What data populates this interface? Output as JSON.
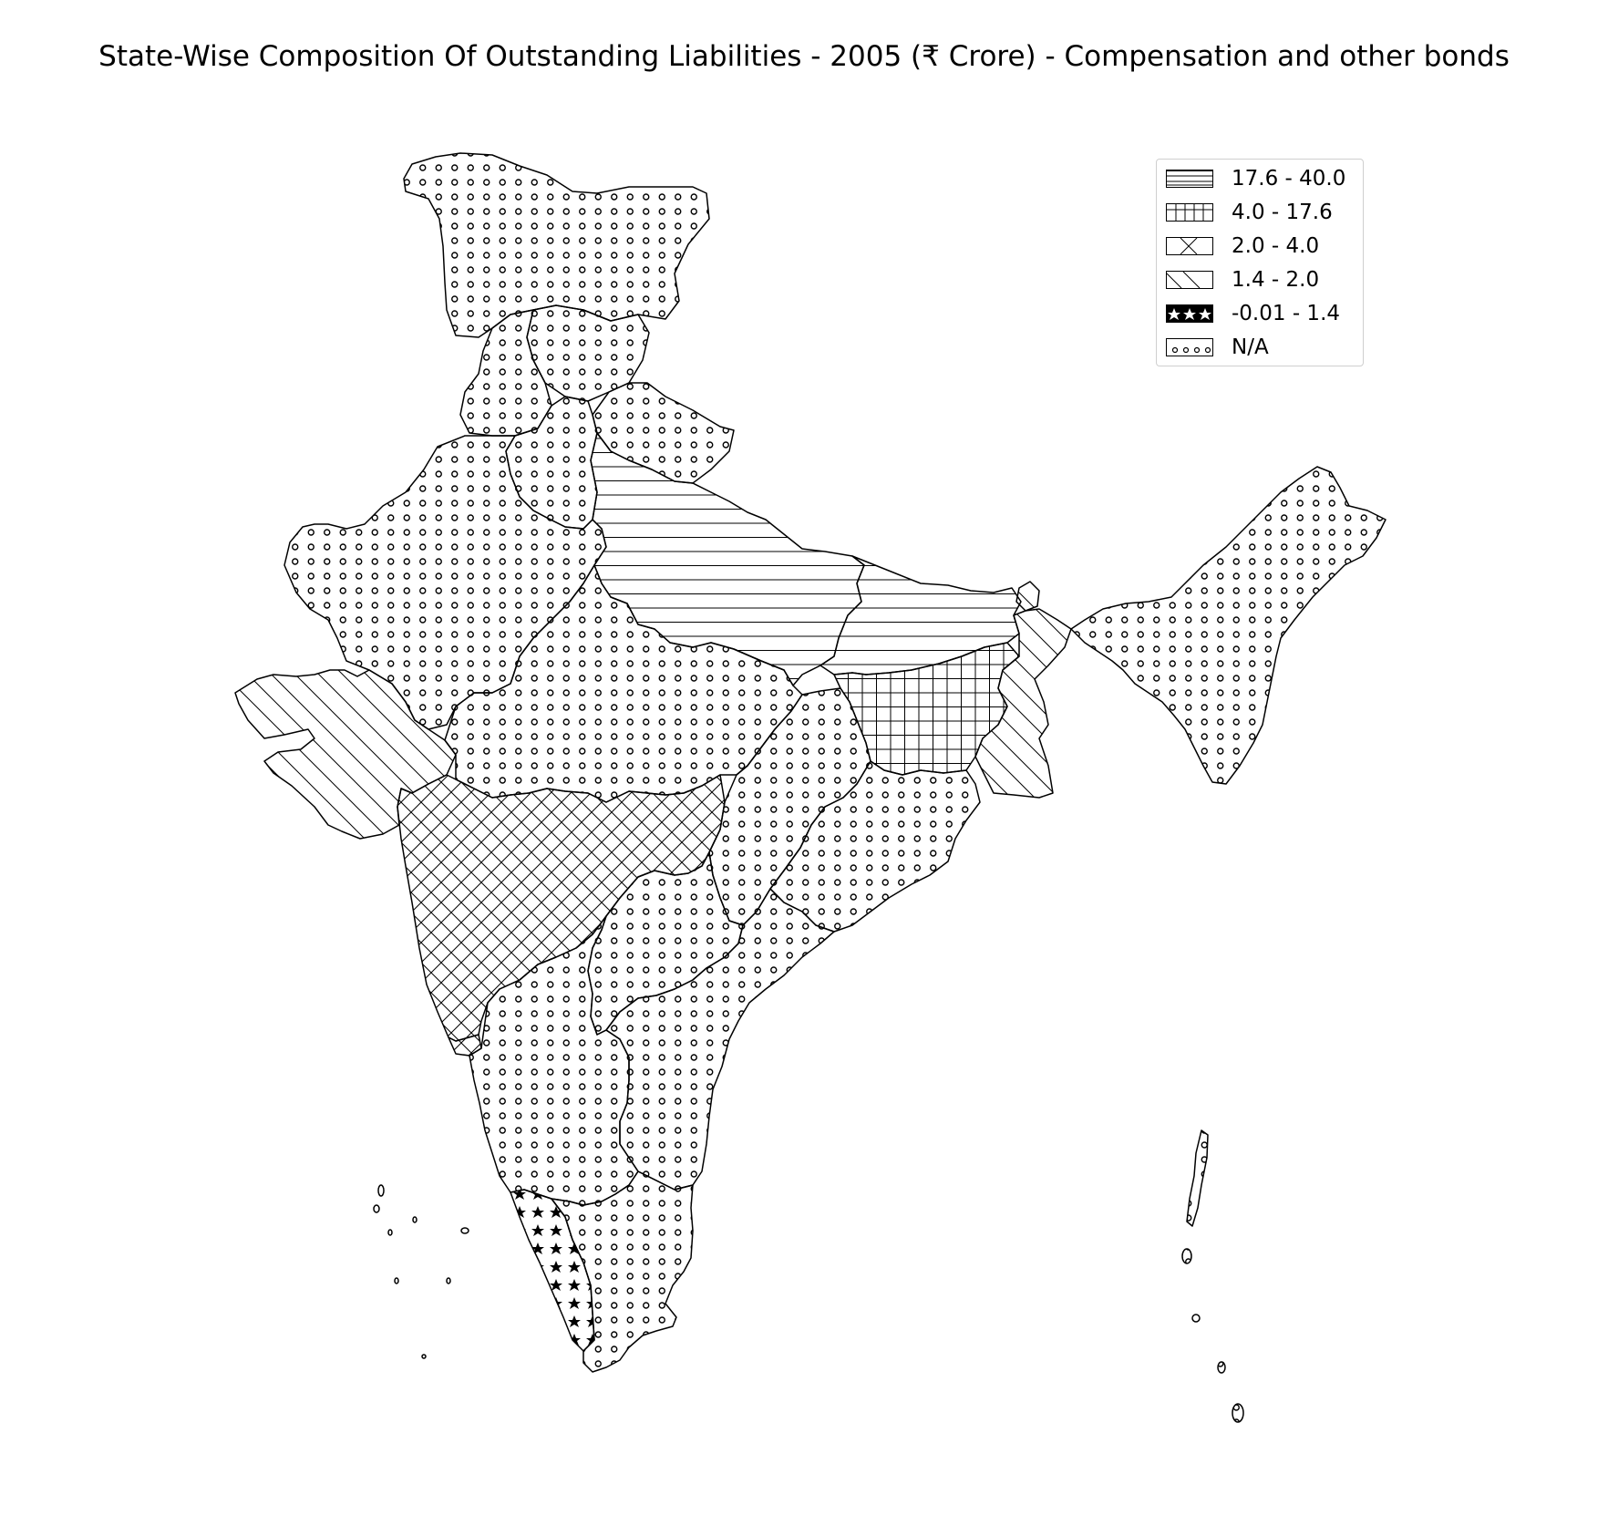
{
  "title": "State-Wise Composition Of Outstanding Liabilities - 2005 (₹ Crore) - Compensation and other bonds",
  "legend": [
    {
      "label": "17.6 - 40.0",
      "pattern": "horizontal-lines"
    },
    {
      "label": "4.0 - 17.6",
      "pattern": "grid"
    },
    {
      "label": "2.0 - 4.0",
      "pattern": "cross-hatch"
    },
    {
      "label": "1.4 - 2.0",
      "pattern": "diagonal-lines"
    },
    {
      "label": "-0.01 - 1.4",
      "pattern": "stars"
    },
    {
      "label": "N/A",
      "pattern": "small-circles"
    }
  ],
  "regions": [
    {
      "name": "Jammu and Kashmir",
      "class": "N/A"
    },
    {
      "name": "Himachal Pradesh",
      "class": "N/A"
    },
    {
      "name": "Punjab",
      "class": "N/A"
    },
    {
      "name": "Uttarakhand",
      "class": "N/A"
    },
    {
      "name": "Haryana",
      "class": "N/A"
    },
    {
      "name": "Rajasthan",
      "class": "N/A"
    },
    {
      "name": "Uttar Pradesh",
      "class": "17.6 - 40.0"
    },
    {
      "name": "Bihar",
      "class": "17.6 - 40.0"
    },
    {
      "name": "Jharkhand",
      "class": "4.0 - 17.6"
    },
    {
      "name": "West Bengal",
      "class": "1.4 - 2.0"
    },
    {
      "name": "Sikkim",
      "class": "1.4 - 2.0"
    },
    {
      "name": "Gujarat",
      "class": "1.4 - 2.0"
    },
    {
      "name": "Maharashtra",
      "class": "2.0 - 4.0"
    },
    {
      "name": "Madhya Pradesh",
      "class": "N/A"
    },
    {
      "name": "Chhattisgarh",
      "class": "N/A"
    },
    {
      "name": "Odisha",
      "class": "N/A"
    },
    {
      "name": "Telangana",
      "class": "N/A"
    },
    {
      "name": "Andhra Pradesh",
      "class": "N/A"
    },
    {
      "name": "Karnataka",
      "class": "N/A"
    },
    {
      "name": "Goa",
      "class": "2.0 - 4.0"
    },
    {
      "name": "Kerala",
      "class": "-0.01 - 1.4"
    },
    {
      "name": "Tamil Nadu",
      "class": "N/A"
    },
    {
      "name": "North-East states",
      "class": "N/A"
    },
    {
      "name": "Andaman and Nicobar Islands",
      "class": "N/A"
    },
    {
      "name": "Lakshadweep",
      "class": "N/A"
    }
  ]
}
